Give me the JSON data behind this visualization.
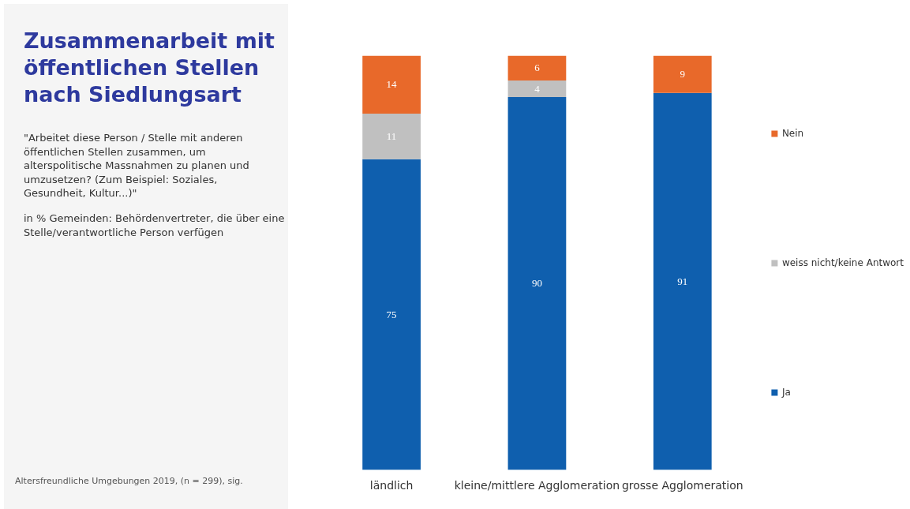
{
  "chart_data": {
    "type": "bar",
    "title": "Zusammenarbeit mit öffentlichen Stellen nach Siedlungsart",
    "subtitle": "\"Arbeitet diese Person / Stelle mit anderen öffentlichen Stellen zusammen, um alterspolitische Massnahmen zu planen und umzusetzen? (Zum Beispiel: Soziales, Gesundheit, Kultur...)\"",
    "annotations": [
      "in % Gemeinden: Behördenvertreter, die über eine Stelle/verantwortliche Person verfügen",
      "Altersfreundliche Umgebungen 2019, (n = 299), sig."
    ],
    "categories": [
      "ländlich",
      "kleine/mittlere Agglomeration",
      "grosse Agglomeration"
    ],
    "stacked": true,
    "data_labels": true,
    "legend": "right",
    "grid": false,
    "series": [
      {
        "name": "Ja",
        "color": "#0f5fae",
        "values": [
          75,
          90,
          91
        ]
      },
      {
        "name": "weiss nicht/keine Antwort",
        "color": "#c0c0c0",
        "values": [
          11,
          4,
          null
        ]
      },
      {
        "name": "Nein",
        "color": "#e8692a",
        "values": [
          14,
          6,
          9
        ]
      }
    ]
  }
}
